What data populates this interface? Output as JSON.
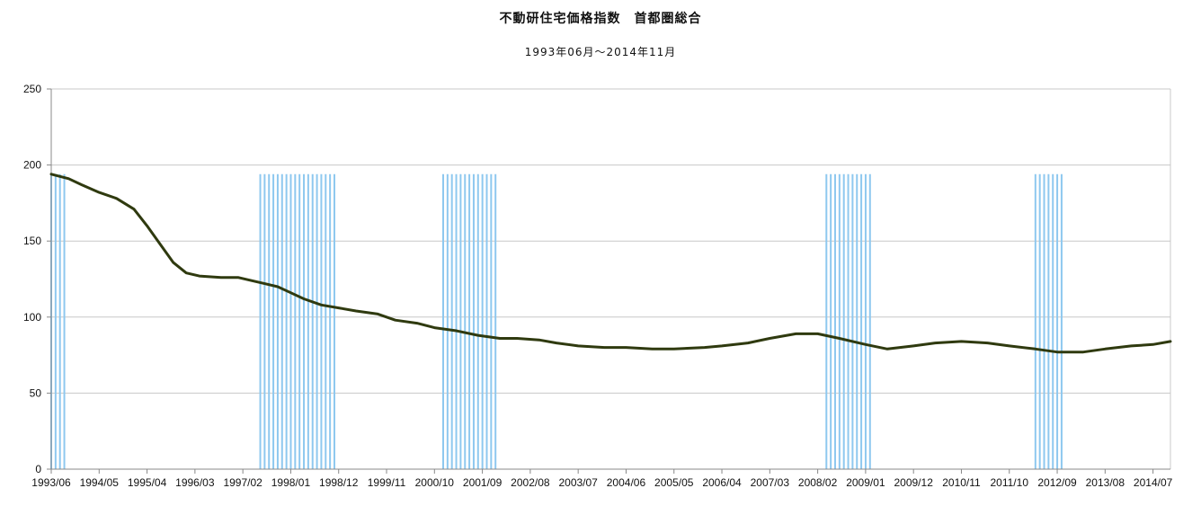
{
  "chart_data": {
    "type": "line",
    "title": "不動研住宅価格指数　首都圏総合",
    "subtitle": "1993年06月～2014年11月",
    "ylim": [
      0,
      250
    ],
    "y_ticks": [
      0,
      50,
      100,
      150,
      200,
      250
    ],
    "grid": true,
    "x_tick_labels": [
      "1993/06",
      "1994/05",
      "1995/04",
      "1996/03",
      "1997/02",
      "1998/01",
      "1998/12",
      "1999/11",
      "2000/10",
      "2001/09",
      "2002/08",
      "2003/07",
      "2004/06",
      "2005/05",
      "2006/04",
      "2007/03",
      "2008/02",
      "2009/01",
      "2009/12",
      "2010/11",
      "2011/10",
      "2012/09",
      "2013/08",
      "2014/07"
    ],
    "colors": {
      "line": "#2f3a0f",
      "recession_band": "#8ec8ef",
      "grid": "#c8c8c8",
      "axis": "#888888"
    },
    "series": [
      {
        "points": [
          [
            "1993/06",
            194
          ],
          [
            "1993/10",
            191
          ],
          [
            "1994/01",
            187
          ],
          [
            "1994/05",
            182
          ],
          [
            "1994/09",
            178
          ],
          [
            "1995/01",
            171
          ],
          [
            "1995/04",
            160
          ],
          [
            "1995/07",
            148
          ],
          [
            "1995/10",
            136
          ],
          [
            "1996/01",
            129
          ],
          [
            "1996/04",
            127
          ],
          [
            "1996/09",
            126
          ],
          [
            "1997/01",
            126
          ],
          [
            "1997/04",
            124
          ],
          [
            "1997/07",
            122
          ],
          [
            "1997/10",
            120
          ],
          [
            "1998/01",
            116
          ],
          [
            "1998/04",
            112
          ],
          [
            "1998/08",
            108
          ],
          [
            "1998/12",
            106
          ],
          [
            "1999/04",
            104
          ],
          [
            "1999/09",
            102
          ],
          [
            "2000/01",
            98
          ],
          [
            "2000/06",
            96
          ],
          [
            "2000/10",
            93
          ],
          [
            "2001/03",
            91
          ],
          [
            "2001/08",
            88
          ],
          [
            "2002/01",
            86
          ],
          [
            "2002/05",
            86
          ],
          [
            "2002/10",
            85
          ],
          [
            "2003/02",
            83
          ],
          [
            "2003/07",
            81
          ],
          [
            "2004/01",
            80
          ],
          [
            "2004/06",
            80
          ],
          [
            "2004/12",
            79
          ],
          [
            "2005/05",
            79
          ],
          [
            "2005/12",
            80
          ],
          [
            "2006/04",
            81
          ],
          [
            "2006/10",
            83
          ],
          [
            "2007/03",
            86
          ],
          [
            "2007/09",
            89
          ],
          [
            "2008/02",
            89
          ],
          [
            "2008/07",
            86
          ],
          [
            "2009/01",
            82
          ],
          [
            "2009/06",
            79
          ],
          [
            "2009/12",
            81
          ],
          [
            "2010/05",
            83
          ],
          [
            "2010/11",
            84
          ],
          [
            "2011/05",
            83
          ],
          [
            "2011/10",
            81
          ],
          [
            "2012/04",
            79
          ],
          [
            "2012/09",
            77
          ],
          [
            "2013/03",
            77
          ],
          [
            "2013/08",
            79
          ],
          [
            "2014/02",
            81
          ],
          [
            "2014/07",
            82
          ],
          [
            "2014/11",
            84
          ]
        ]
      }
    ],
    "bands": [
      {
        "start": "1993/06",
        "end": "1993/10",
        "top": 194
      },
      {
        "start": "1997/06",
        "end": "1998/12",
        "top": 194
      },
      {
        "start": "2000/12",
        "end": "2002/01",
        "top": 194
      },
      {
        "start": "2008/04",
        "end": "2009/03",
        "top": 194
      },
      {
        "start": "2012/04",
        "end": "2012/11",
        "top": 194
      }
    ]
  }
}
